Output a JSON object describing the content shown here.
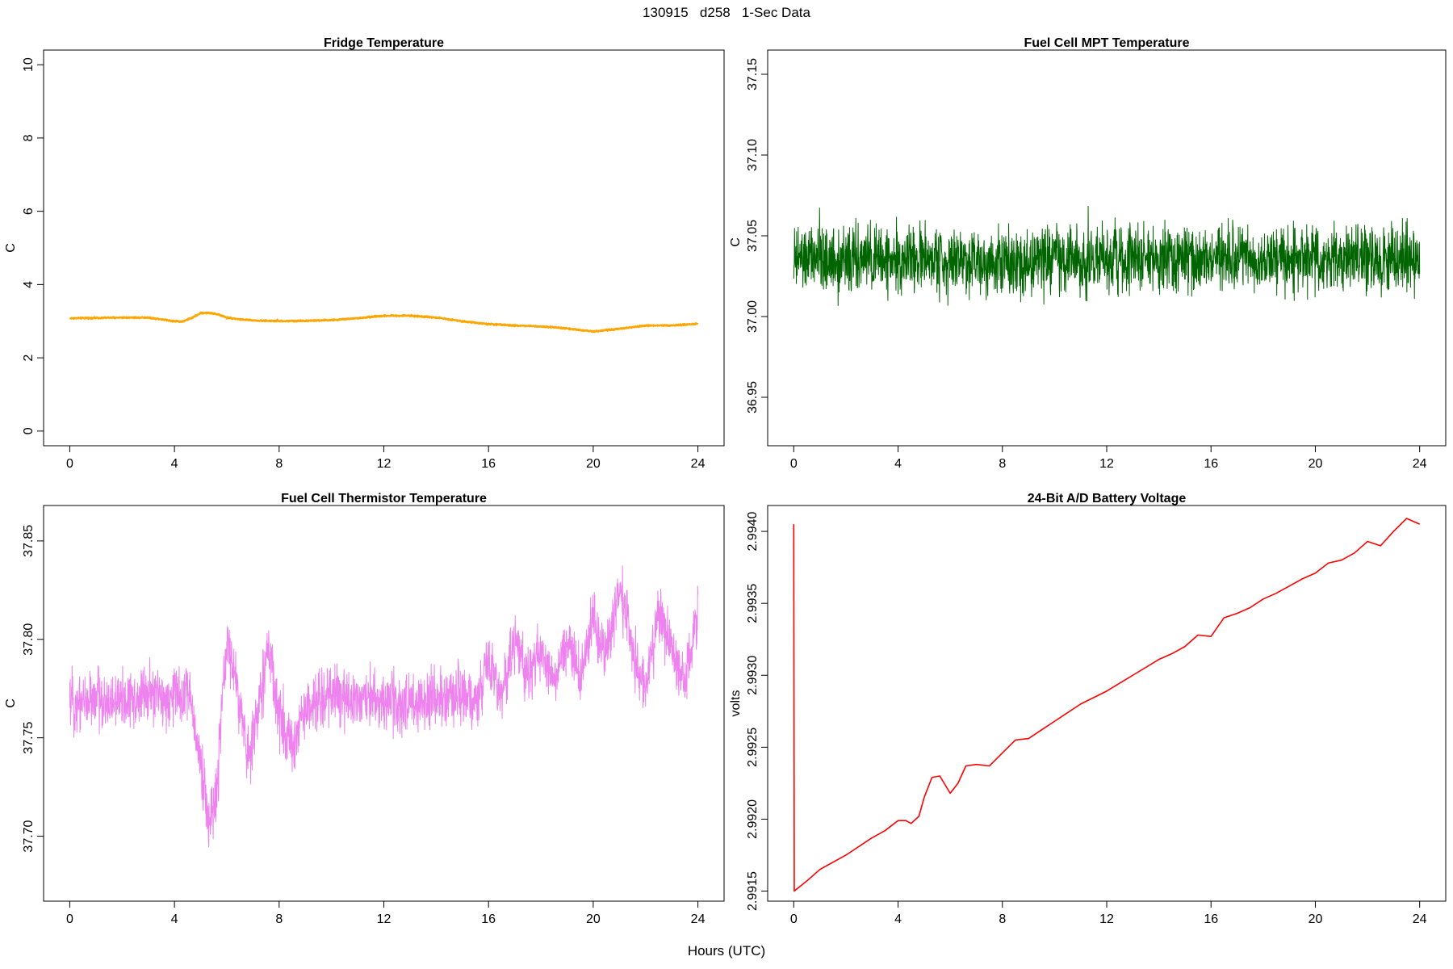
{
  "title": "130915   d258   1-Sec Data",
  "xlabel": "Hours (UTC)",
  "chart_data": [
    {
      "id": "fridge",
      "type": "line",
      "title": "Fridge Temperature",
      "ylabel": "C",
      "color": "#FFA500",
      "xlim": [
        -1,
        25
      ],
      "ylim": [
        -0.4,
        10.4
      ],
      "xticks": [
        0,
        4,
        8,
        12,
        16,
        20,
        24
      ],
      "yticks": [
        0,
        2,
        4,
        6,
        8,
        10
      ],
      "ytick_labels": [
        "0",
        "2",
        "4",
        "6",
        "8",
        "10"
      ],
      "noise": 0.03,
      "x": [
        0,
        1,
        2,
        3,
        4,
        4.3,
        4.7,
        5,
        5.3,
        5.7,
        6,
        6.5,
        7,
        8,
        9,
        10,
        11,
        12,
        13,
        14,
        15,
        16,
        17,
        18,
        19,
        20,
        21,
        22,
        23,
        24
      ],
      "values": [
        3.08,
        3.09,
        3.1,
        3.1,
        3.0,
        2.99,
        3.1,
        3.22,
        3.23,
        3.18,
        3.1,
        3.05,
        3.02,
        3.0,
        3.01,
        3.03,
        3.08,
        3.15,
        3.15,
        3.1,
        3.0,
        2.92,
        2.88,
        2.86,
        2.8,
        2.72,
        2.79,
        2.88,
        2.88,
        2.93
      ]
    },
    {
      "id": "mpt",
      "type": "line",
      "title": "Fuel Cell MPT Temperature",
      "ylabel": "C",
      "color": "#006400",
      "xlim": [
        -1,
        25
      ],
      "ylim": [
        36.92,
        37.165
      ],
      "xticks": [
        0,
        4,
        8,
        12,
        16,
        20,
        24
      ],
      "yticks": [
        36.95,
        37.0,
        37.05,
        37.1,
        37.15
      ],
      "ytick_labels": [
        "36.95",
        "37.00",
        "37.05",
        "37.10",
        "37.15"
      ],
      "noise": 0.03,
      "x": [
        0,
        24
      ],
      "values": [
        37.035,
        37.035
      ]
    },
    {
      "id": "thermistor",
      "type": "line",
      "title": "Fuel Cell Thermistor Temperature",
      "ylabel": "C",
      "color": "#EE82EE",
      "xlim": [
        -1,
        25
      ],
      "ylim": [
        37.667,
        37.868
      ],
      "xticks": [
        0,
        4,
        8,
        12,
        16,
        20,
        24
      ],
      "yticks": [
        37.7,
        37.75,
        37.8,
        37.85
      ],
      "ytick_labels": [
        "37.70",
        "37.75",
        "37.80",
        "37.85"
      ],
      "noise": 0.022,
      "x": [
        0,
        1,
        2,
        3,
        4,
        4.5,
        5,
        5.3,
        5.6,
        6,
        6.4,
        6.8,
        7.2,
        7.6,
        8.0,
        8.5,
        9,
        10,
        12,
        14,
        15,
        15.5,
        16,
        16.5,
        17,
        17.5,
        18,
        18.5,
        19,
        19.5,
        20,
        20.5,
        21,
        21.5,
        22,
        22.5,
        23,
        23.5,
        24
      ],
      "values": [
        37.768,
        37.77,
        37.768,
        37.772,
        37.77,
        37.775,
        37.74,
        37.705,
        37.72,
        37.8,
        37.775,
        37.74,
        37.765,
        37.795,
        37.76,
        37.745,
        37.765,
        37.772,
        37.768,
        37.768,
        37.772,
        37.764,
        37.79,
        37.77,
        37.8,
        37.782,
        37.795,
        37.777,
        37.8,
        37.78,
        37.81,
        37.79,
        37.825,
        37.795,
        37.775,
        37.815,
        37.795,
        37.78,
        37.81
      ]
    },
    {
      "id": "battery",
      "type": "line",
      "title": "24-Bit A/D Battery Voltage",
      "ylabel": "volts",
      "color": "#FF0000",
      "xlim": [
        -1,
        25
      ],
      "ylim": [
        2.99143,
        2.99418
      ],
      "xticks": [
        0,
        4,
        8,
        12,
        16,
        20,
        24
      ],
      "yticks": [
        2.9915,
        2.992,
        2.9925,
        2.993,
        2.9935,
        2.994
      ],
      "ytick_labels": [
        "2.9915",
        "2.9920",
        "2.9925",
        "2.9930",
        "2.9935",
        "2.9940"
      ],
      "noise": 0,
      "x": [
        0,
        0.02,
        0.5,
        1,
        2,
        3,
        3.5,
        4,
        4.3,
        4.5,
        4.8,
        5.0,
        5.3,
        5.6,
        6.0,
        6.3,
        6.6,
        7.0,
        7.5,
        8.0,
        8.5,
        9.0,
        9.5,
        10,
        11,
        12,
        13,
        14,
        14.5,
        15,
        15.5,
        16,
        16.5,
        17,
        17.5,
        18,
        18.5,
        19,
        19.5,
        20,
        20.5,
        21,
        21.5,
        22,
        22.5,
        23,
        23.5,
        24
      ],
      "values": [
        2.99405,
        2.9915,
        2.99157,
        2.99165,
        2.99175,
        2.99187,
        2.99192,
        2.99199,
        2.99199,
        2.99197,
        2.99202,
        2.99215,
        2.99229,
        2.9923,
        2.99218,
        2.99225,
        2.99237,
        2.99238,
        2.99237,
        2.99246,
        2.99255,
        2.99256,
        2.99262,
        2.99268,
        2.9928,
        2.99289,
        2.993,
        2.99311,
        2.99315,
        2.9932,
        2.99328,
        2.99327,
        2.9934,
        2.99343,
        2.99347,
        2.99353,
        2.99357,
        2.99362,
        2.99367,
        2.99371,
        2.99378,
        2.9938,
        2.99385,
        2.99393,
        2.9939,
        2.994,
        2.99409,
        2.99405
      ]
    }
  ]
}
